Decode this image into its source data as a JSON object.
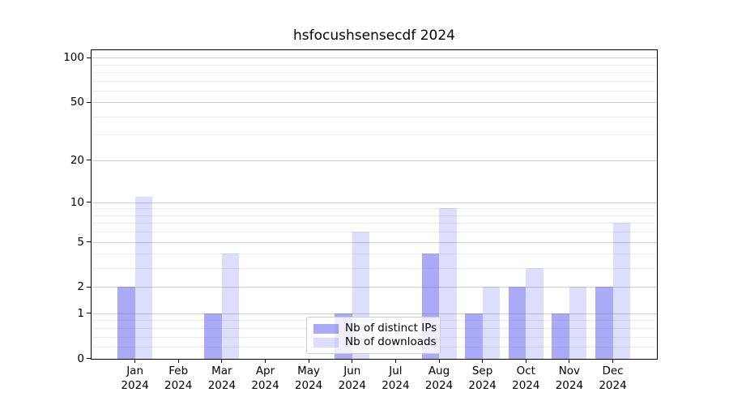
{
  "title": "hsfocushsensecdf 2024",
  "chart_data": {
    "type": "bar",
    "title": "hsfocushsensecdf 2024",
    "categories": [
      "Jan",
      "Feb",
      "Mar",
      "Apr",
      "May",
      "Jun",
      "Jul",
      "Aug",
      "Sep",
      "Oct",
      "Nov",
      "Dec"
    ],
    "category_year": "2024",
    "series": [
      {
        "name": "Nb of distinct IPs",
        "color": "rgba(85,85,238,0.5)",
        "values": [
          2,
          0,
          1,
          0,
          0,
          1,
          0,
          4,
          1,
          2,
          1,
          2
        ]
      },
      {
        "name": "Nb of downloads",
        "color": "rgba(85,85,238,0.2)",
        "values": [
          11,
          0,
          4,
          0,
          0,
          6,
          0,
          9,
          2,
          3,
          2,
          7
        ]
      }
    ],
    "yscale": "log1p",
    "ylim": [
      0,
      112
    ],
    "y_ticks": [
      0,
      1,
      2,
      5,
      10,
      20,
      50,
      100
    ],
    "y_minor_ticks": [
      0.2,
      0.4,
      0.6,
      0.8,
      3,
      4,
      6,
      7,
      8,
      9,
      30,
      40,
      60,
      70,
      80,
      90
    ],
    "grid": "horizontal",
    "legend_position": "lower center"
  },
  "colors": {
    "bar_base": "#5555ee",
    "grid_major": "#cfcfcf",
    "grid_minor": "#ececec",
    "spine": "#000000",
    "background": "#ffffff"
  }
}
